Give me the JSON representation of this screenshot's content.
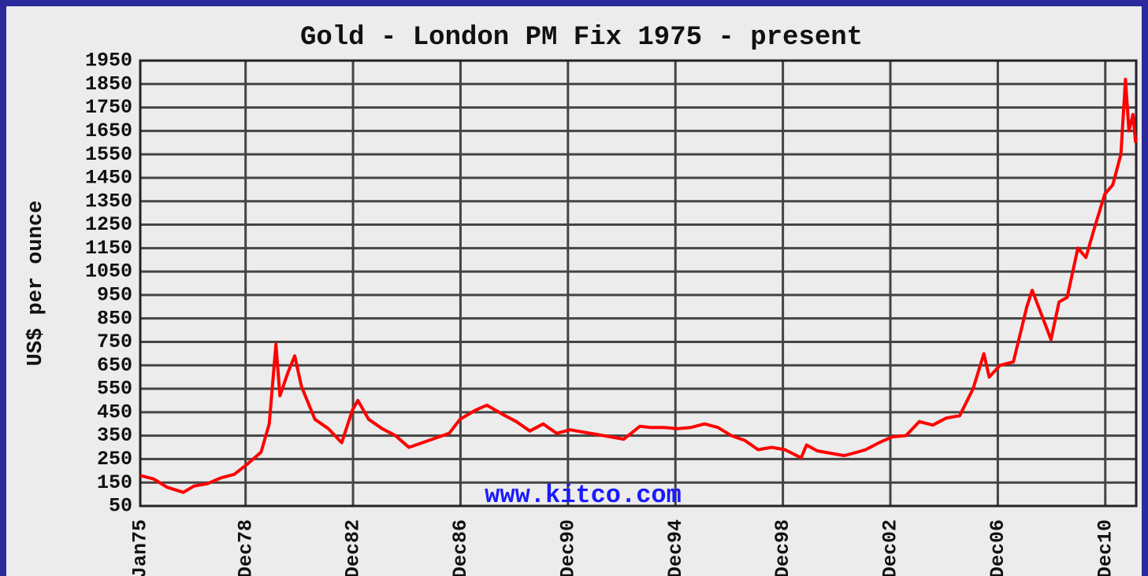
{
  "chart_data": {
    "type": "line",
    "title": "Gold - London PM Fix 1975 - present",
    "y_label": "US$ per ounce",
    "watermark": "www.kitco.com",
    "x": [
      1975.0,
      1975.5,
      1976.0,
      1976.6,
      1977.0,
      1977.5,
      1978.0,
      1978.5,
      1979.0,
      1979.5,
      1979.8,
      1980.05,
      1980.2,
      1980.5,
      1980.75,
      1981.0,
      1981.5,
      1982.0,
      1982.5,
      1982.9,
      1983.1,
      1983.5,
      1984.0,
      1984.5,
      1985.0,
      1985.5,
      1986.0,
      1986.5,
      1986.9,
      1987.5,
      1987.9,
      1988.5,
      1989.0,
      1989.5,
      1990.0,
      1990.5,
      1991.0,
      1991.5,
      1992.0,
      1992.5,
      1993.0,
      1993.6,
      1994.0,
      1994.5,
      1995.0,
      1995.5,
      1996.0,
      1996.5,
      1997.0,
      1997.5,
      1998.0,
      1998.5,
      1999.0,
      1999.6,
      1999.8,
      2000.2,
      2000.7,
      2001.2,
      2001.7,
      2002.0,
      2002.5,
      2003.0,
      2003.5,
      2004.0,
      2004.5,
      2005.0,
      2005.5,
      2006.0,
      2006.4,
      2006.6,
      2007.0,
      2007.5,
      2008.0,
      2008.2,
      2008.6,
      2008.9,
      2009.2,
      2009.5,
      2009.9,
      2010.2,
      2010.5,
      2010.9,
      2011.2,
      2011.5,
      2011.67,
      2011.8,
      2011.95,
      2012.05
    ],
    "series": [
      {
        "name": "Gold",
        "color": "#ff0000",
        "values": [
          180,
          165,
          130,
          108,
          135,
          145,
          170,
          185,
          230,
          280,
          400,
          740,
          520,
          620,
          690,
          560,
          420,
          380,
          320,
          460,
          500,
          420,
          380,
          350,
          300,
          320,
          340,
          360,
          420,
          460,
          480,
          440,
          410,
          370,
          400,
          360,
          375,
          365,
          355,
          345,
          335,
          390,
          385,
          385,
          380,
          385,
          400,
          385,
          350,
          330,
          290,
          300,
          290,
          255,
          310,
          285,
          275,
          265,
          280,
          290,
          320,
          345,
          350,
          410,
          395,
          425,
          435,
          550,
          700,
          600,
          650,
          665,
          900,
          970,
          850,
          760,
          920,
          940,
          1150,
          1110,
          1230,
          1380,
          1420,
          1550,
          1870,
          1650,
          1720,
          1600
        ]
      }
    ],
    "xlim": [
      1975.0,
      2012.07
    ],
    "xticks": [
      {
        "value": 1975.0,
        "label": "Jan75"
      },
      {
        "value": 1978.92,
        "label": "Dec78"
      },
      {
        "value": 1982.92,
        "label": "Dec82"
      },
      {
        "value": 1986.92,
        "label": "Dec86"
      },
      {
        "value": 1990.92,
        "label": "Dec90"
      },
      {
        "value": 1994.92,
        "label": "Dec94"
      },
      {
        "value": 1998.92,
        "label": "Dec98"
      },
      {
        "value": 2002.92,
        "label": "Dec02"
      },
      {
        "value": 2006.92,
        "label": "Dec06"
      },
      {
        "value": 2010.92,
        "label": "Dec10"
      }
    ],
    "ylim": [
      50,
      1950
    ],
    "yticks": [
      50,
      150,
      250,
      350,
      450,
      550,
      650,
      750,
      850,
      950,
      1050,
      1150,
      1250,
      1350,
      1450,
      1550,
      1650,
      1750,
      1850,
      1950
    ],
    "grid": true
  }
}
